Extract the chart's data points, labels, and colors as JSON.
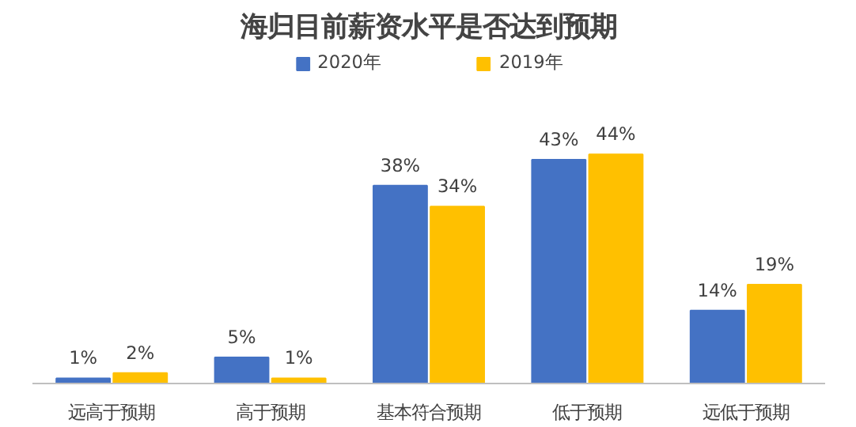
{
  "chart_data": {
    "type": "bar",
    "title": "海归目前薪资水平是否达到预期",
    "categories": [
      "远高于预期",
      "高于预期",
      "基本符合预期",
      "低于预期",
      "远低于预期"
    ],
    "series": [
      {
        "name": "2020年",
        "color": "#4472c4",
        "values": [
          1,
          5,
          38,
          43,
          14
        ],
        "value_labels": [
          "1%",
          "5%",
          "38%",
          "43%",
          "14%"
        ]
      },
      {
        "name": "2019年",
        "color": "#ffc000",
        "values": [
          2,
          1,
          34,
          44,
          19
        ],
        "value_labels": [
          "2%",
          "1%",
          "34%",
          "44%",
          "19%"
        ]
      }
    ],
    "legend": "top",
    "grid": false
  }
}
